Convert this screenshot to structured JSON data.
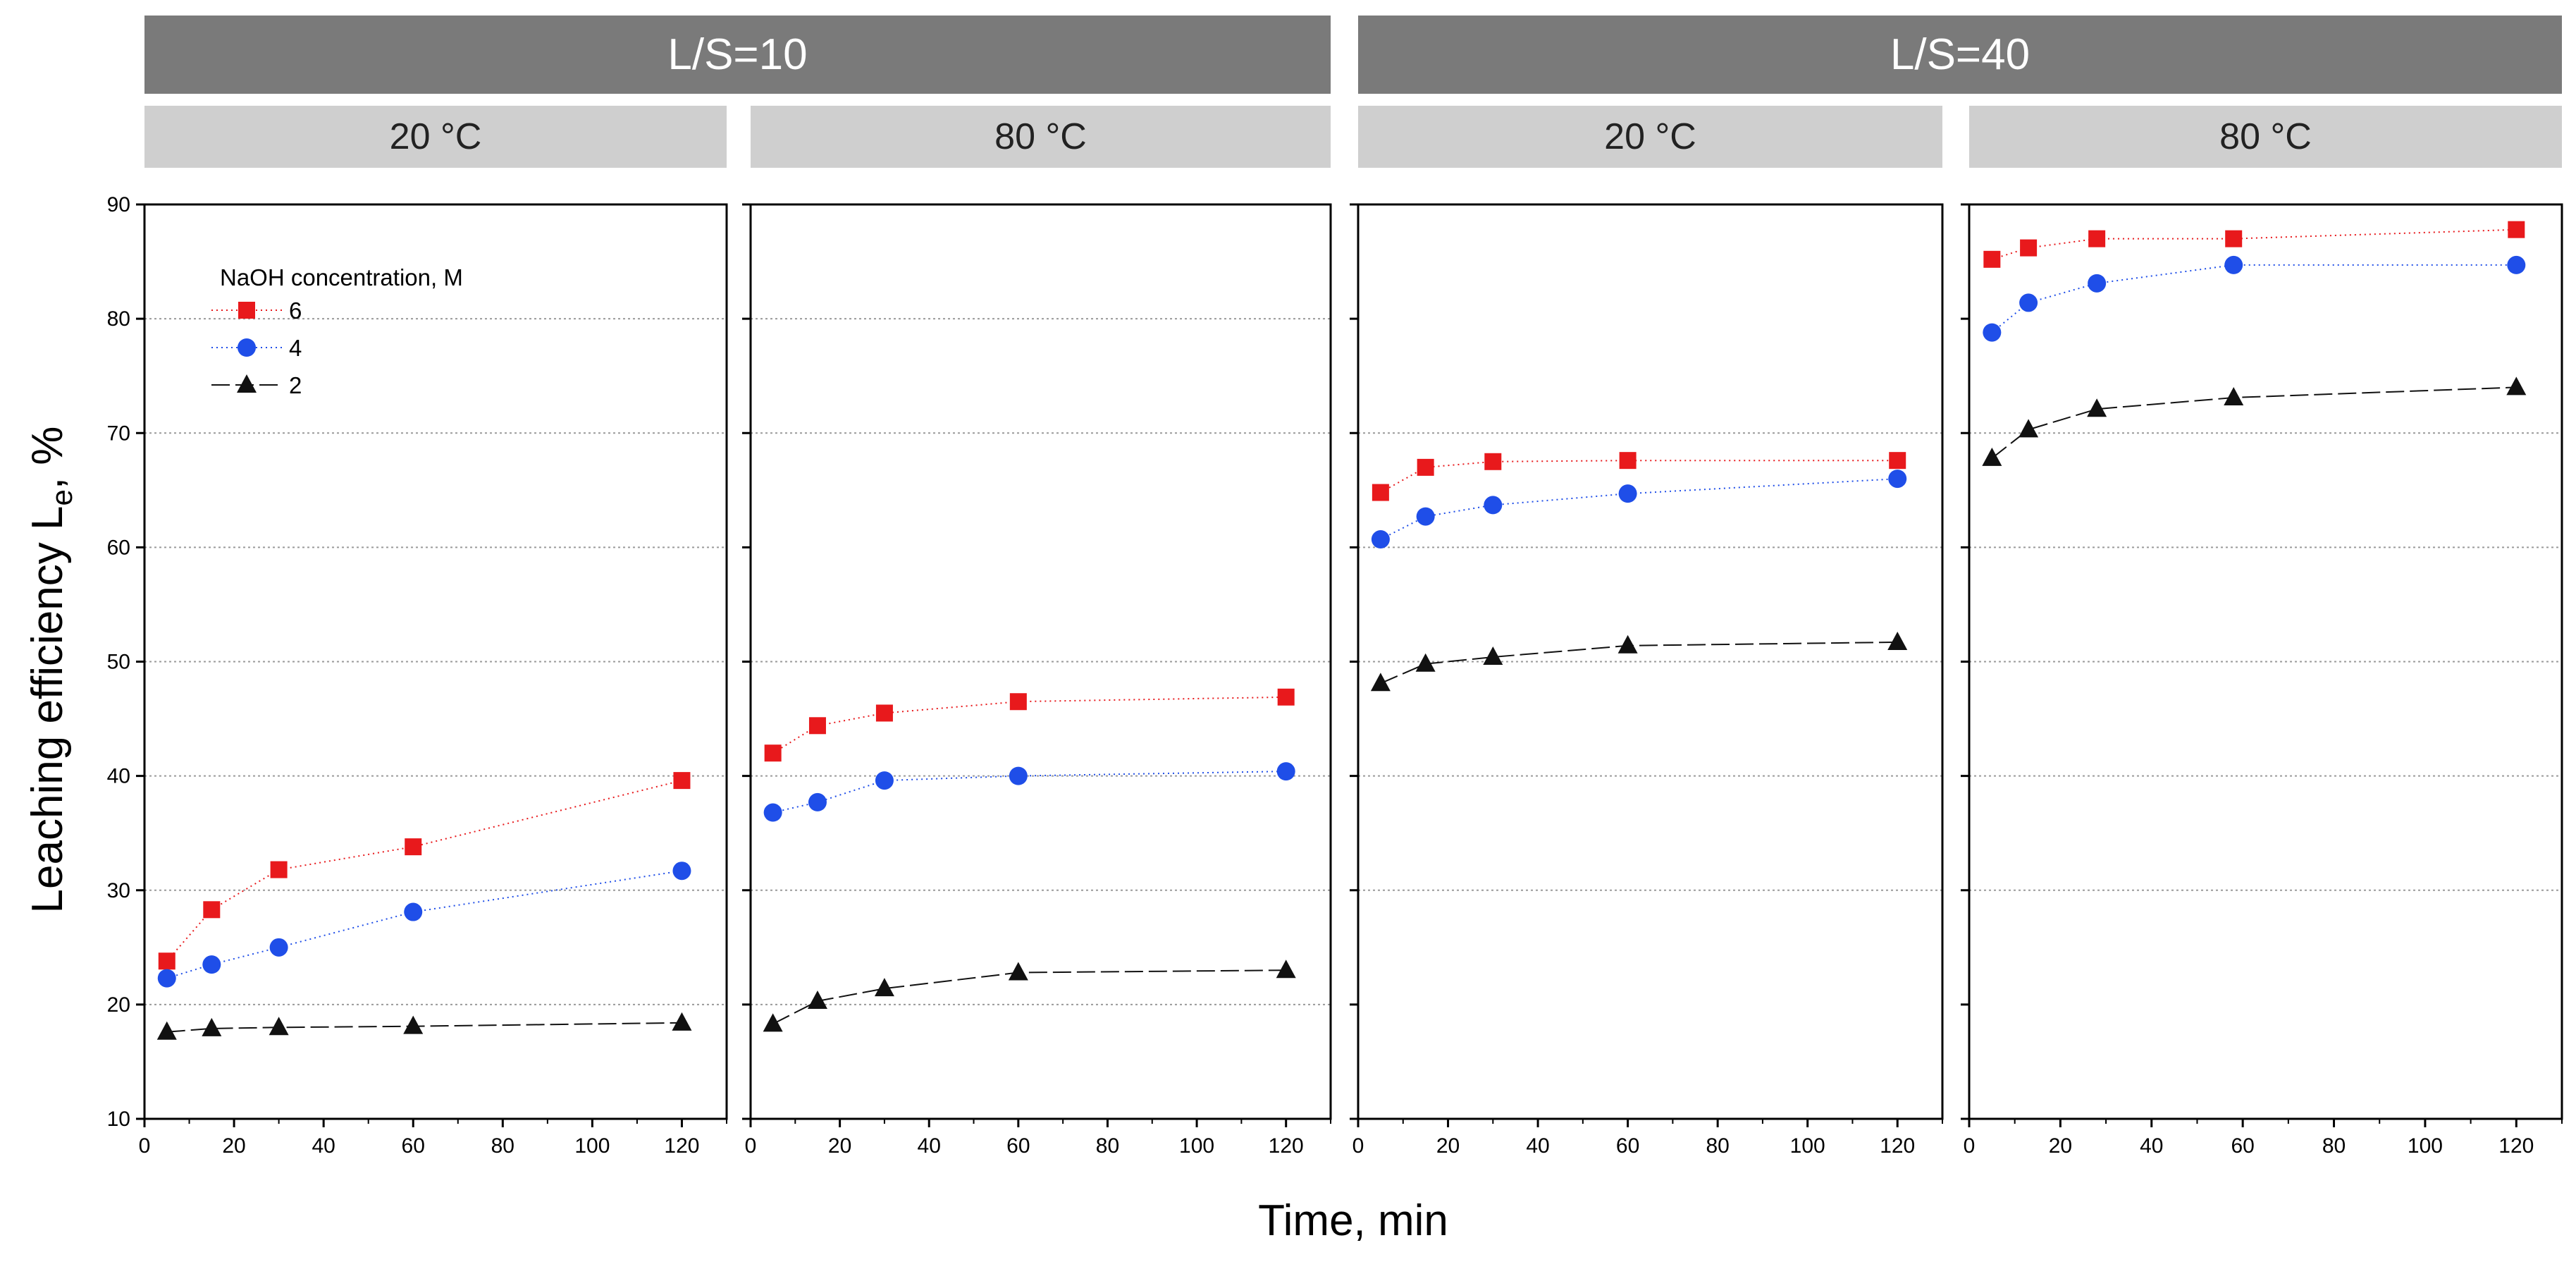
{
  "chart_data": {
    "type": "line",
    "xlabel": "Time, min",
    "ylabel": "Leaching efficiency L",
    "ylabel_subscript": "e",
    "ylabel_unit": ", %",
    "ylim": [
      10,
      90
    ],
    "yticks": [
      "10",
      "20",
      "30",
      "40",
      "50",
      "60",
      "70",
      "80",
      "90"
    ],
    "xlim": [
      0,
      130
    ],
    "xticks": [
      "0",
      "20",
      "40",
      "60",
      "80",
      "100",
      "120"
    ],
    "x": [
      5,
      15,
      30,
      60,
      120
    ],
    "legend": {
      "title": "NaOH concentration, M",
      "entries": [
        {
          "label": "6",
          "marker": "square",
          "color": "#e8191c"
        },
        {
          "label": "4",
          "marker": "circle",
          "color": "#1f4ee8"
        },
        {
          "label": "2",
          "marker": "triangle",
          "color": "#111111"
        }
      ]
    },
    "groups": [
      {
        "label": "L/S=10",
        "panels": [
          0,
          1
        ]
      },
      {
        "label": "L/S=40",
        "panels": [
          2,
          3
        ]
      }
    ],
    "panels": [
      {
        "label": "20 °C",
        "gridlines": [
          20,
          30,
          40,
          50,
          60,
          70,
          80
        ],
        "series": [
          {
            "name": "6",
            "x": [
              5,
              15,
              30,
              60,
              120
            ],
            "values": [
              23.8,
              28.3,
              31.8,
              33.8,
              39.6
            ]
          },
          {
            "name": "4",
            "x": [
              5,
              15,
              30,
              60,
              120
            ],
            "values": [
              22.3,
              23.5,
              25.0,
              28.1,
              31.7
            ]
          },
          {
            "name": "2",
            "x": [
              5,
              15,
              30,
              60,
              120
            ],
            "values": [
              17.6,
              17.9,
              18.0,
              18.1,
              18.4
            ]
          }
        ]
      },
      {
        "label": "80 °C",
        "gridlines": [
          20,
          30,
          40,
          50,
          70,
          80
        ],
        "series": [
          {
            "name": "6",
            "x": [
              5,
              15,
              30,
              60,
              120
            ],
            "values": [
              42.0,
              44.4,
              45.5,
              46.5,
              46.9
            ]
          },
          {
            "name": "4",
            "x": [
              5,
              15,
              30,
              60,
              120
            ],
            "values": [
              36.8,
              37.7,
              39.6,
              40.0,
              40.4
            ]
          },
          {
            "name": "2",
            "x": [
              5,
              15,
              30,
              60,
              120
            ],
            "values": [
              18.3,
              20.3,
              21.4,
              22.8,
              23.0
            ]
          }
        ]
      },
      {
        "label": "20 °C",
        "gridlines": [
          30,
          40,
          50,
          60,
          70
        ],
        "series": [
          {
            "name": "6",
            "x": [
              5,
              15,
              30,
              60,
              120
            ],
            "values": [
              64.8,
              67.0,
              67.5,
              67.6,
              67.6
            ]
          },
          {
            "name": "4",
            "x": [
              5,
              15,
              30,
              60,
              120
            ],
            "values": [
              60.7,
              62.7,
              63.7,
              64.7,
              66.0
            ]
          },
          {
            "name": "2",
            "x": [
              5,
              15,
              30,
              60,
              120
            ],
            "values": [
              48.1,
              49.8,
              50.4,
              51.4,
              51.7
            ]
          }
        ]
      },
      {
        "label": "80 °C",
        "gridlines": [
          30,
          40,
          50,
          60,
          70
        ],
        "series": [
          {
            "name": "6",
            "x": [
              5,
              13,
              28,
              58,
              120
            ],
            "values": [
              85.2,
              86.2,
              87.0,
              87.0,
              87.8
            ]
          },
          {
            "name": "4",
            "x": [
              5,
              13,
              28,
              58,
              120
            ],
            "values": [
              78.8,
              81.4,
              83.1,
              84.7,
              84.7
            ]
          },
          {
            "name": "2",
            "x": [
              5,
              13,
              28,
              58,
              120
            ],
            "values": [
              67.8,
              70.3,
              72.1,
              73.1,
              74.0
            ]
          }
        ]
      }
    ]
  }
}
